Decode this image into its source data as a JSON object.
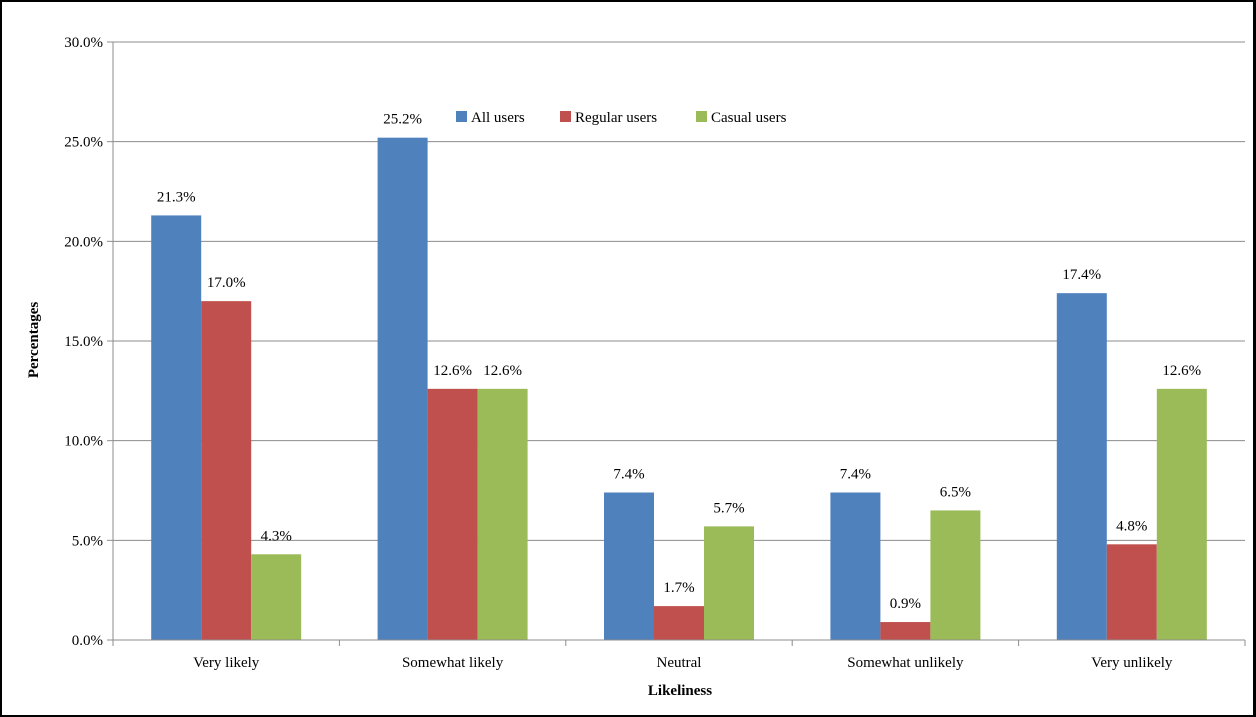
{
  "chart_data": {
    "type": "bar",
    "categories": [
      "Very likely",
      "Somewhat likely",
      "Neutral",
      "Somewhat unlikely",
      "Very unlikely"
    ],
    "series": [
      {
        "name": "All users",
        "values": [
          21.3,
          25.2,
          7.4,
          7.4,
          17.4
        ],
        "labels": [
          "21.3%",
          "25.2%",
          "7.4%",
          "7.4%",
          "17.4%"
        ]
      },
      {
        "name": "Regular users",
        "values": [
          17.0,
          12.6,
          1.7,
          0.9,
          4.8
        ],
        "labels": [
          "17.0%",
          "12.6%",
          "1.7%",
          "0.9%",
          "4.8%"
        ]
      },
      {
        "name": "Casual users",
        "values": [
          4.3,
          12.6,
          5.7,
          6.5,
          12.6
        ],
        "labels": [
          "4.3%",
          "12.6%",
          "5.7%",
          "6.5%",
          "12.6%"
        ]
      }
    ],
    "xlabel": "Likeliness",
    "ylabel": "Percentages",
    "ylim": [
      0,
      30
    ],
    "yticks": [
      0,
      5,
      10,
      15,
      20,
      25,
      30
    ],
    "ytick_labels": [
      "0.0%",
      "5.0%",
      "10.0%",
      "15.0%",
      "20.0%",
      "25.0%",
      "30.0%"
    ],
    "grid": true,
    "legend_position": "top-center",
    "colors": [
      "#4f81bd",
      "#c0504d",
      "#9bbb59"
    ]
  }
}
